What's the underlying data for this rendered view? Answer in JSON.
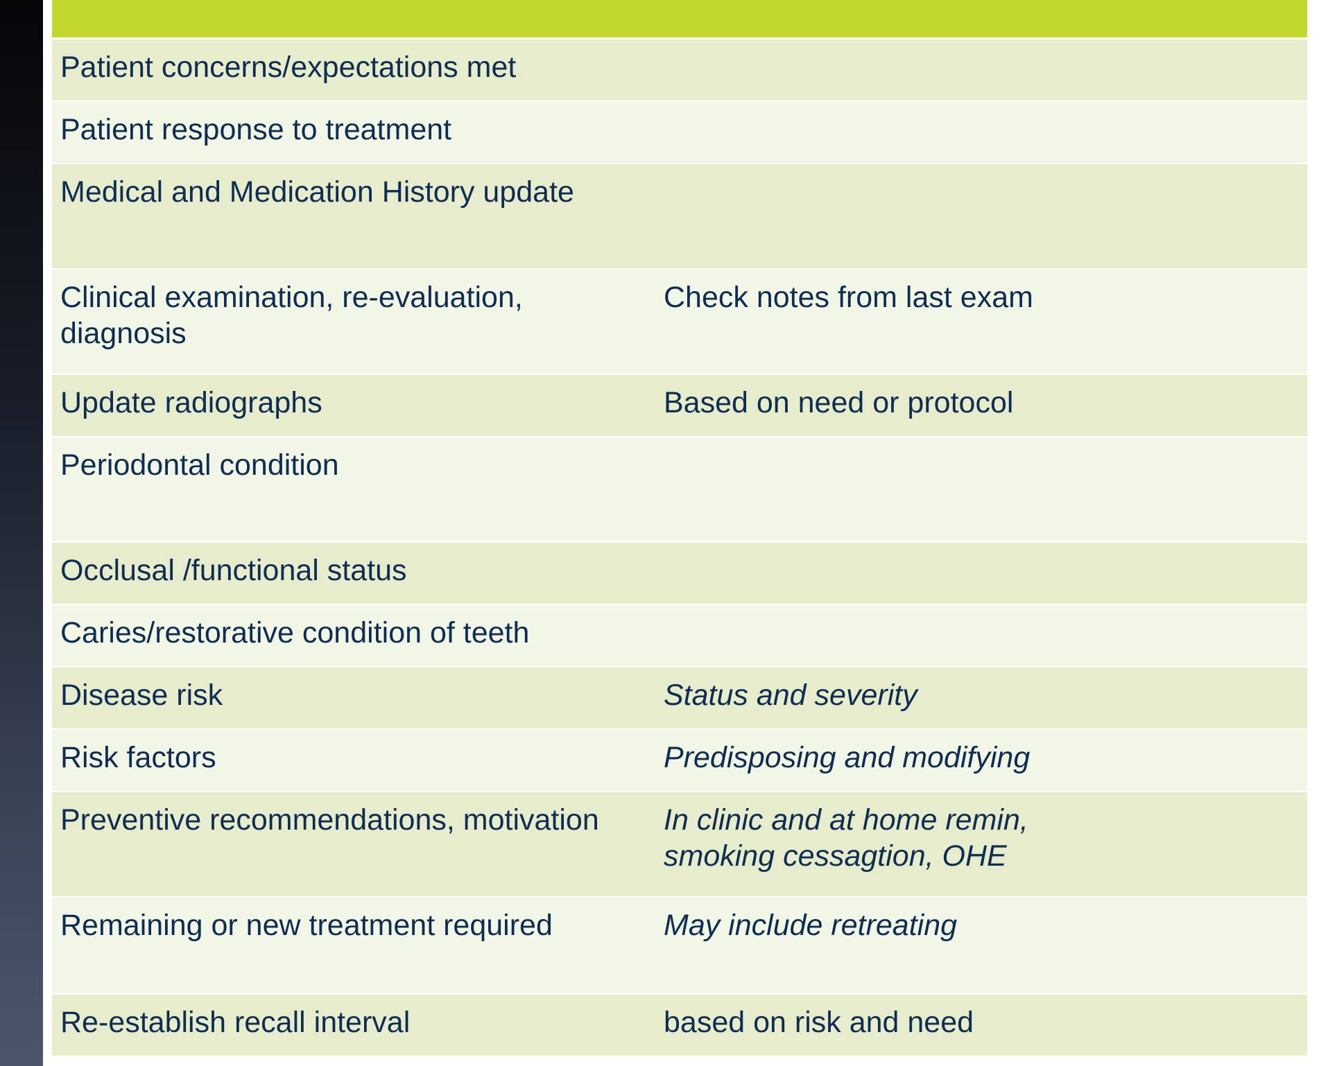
{
  "table": {
    "header": [
      "",
      ""
    ],
    "rows": [
      {
        "label": "Patient concerns/expectations met",
        "note": "",
        "note_italic": false
      },
      {
        "label": "Patient response to treatment",
        "note": "",
        "note_italic": false
      },
      {
        "label": "Medical and Medication History update",
        "note": "",
        "note_italic": false
      },
      {
        "label": "Clinical examination, re-evaluation, diagnosis",
        "note": "Check notes from last exam",
        "note_italic": false
      },
      {
        "label": "Update radiographs",
        "note": "Based on need or protocol",
        "note_italic": false
      },
      {
        "label": "Periodontal condition",
        "note": "",
        "note_italic": false
      },
      {
        "label": "Occlusal /functional status",
        "note": "",
        "note_italic": false
      },
      {
        "label": "Caries/restorative condition of teeth",
        "note": "",
        "note_italic": false
      },
      {
        "label": "Disease risk",
        "note": "Status and severity",
        "note_italic": true
      },
      {
        "label": "Risk factors",
        "note": "Predisposing and modifying",
        "note_italic": true
      },
      {
        "label": "Preventive recommendations, motivation",
        "note": "In clinic and at home remin, smoking cessagtion, OHE",
        "note_italic": true
      },
      {
        "label": "Remaining or new treatment required",
        "note": "May include retreating",
        "note_italic": true
      },
      {
        "label": "Re-establish recall interval",
        "note": "based on risk and need",
        "note_italic": false
      }
    ]
  },
  "colors": {
    "header": "#c2d82e",
    "row_odd": "#e7edcc",
    "row_even": "#f2f6e6",
    "text": "#0f2d52",
    "sidebar_top": "#050608",
    "sidebar_bottom": "#4b566d"
  }
}
